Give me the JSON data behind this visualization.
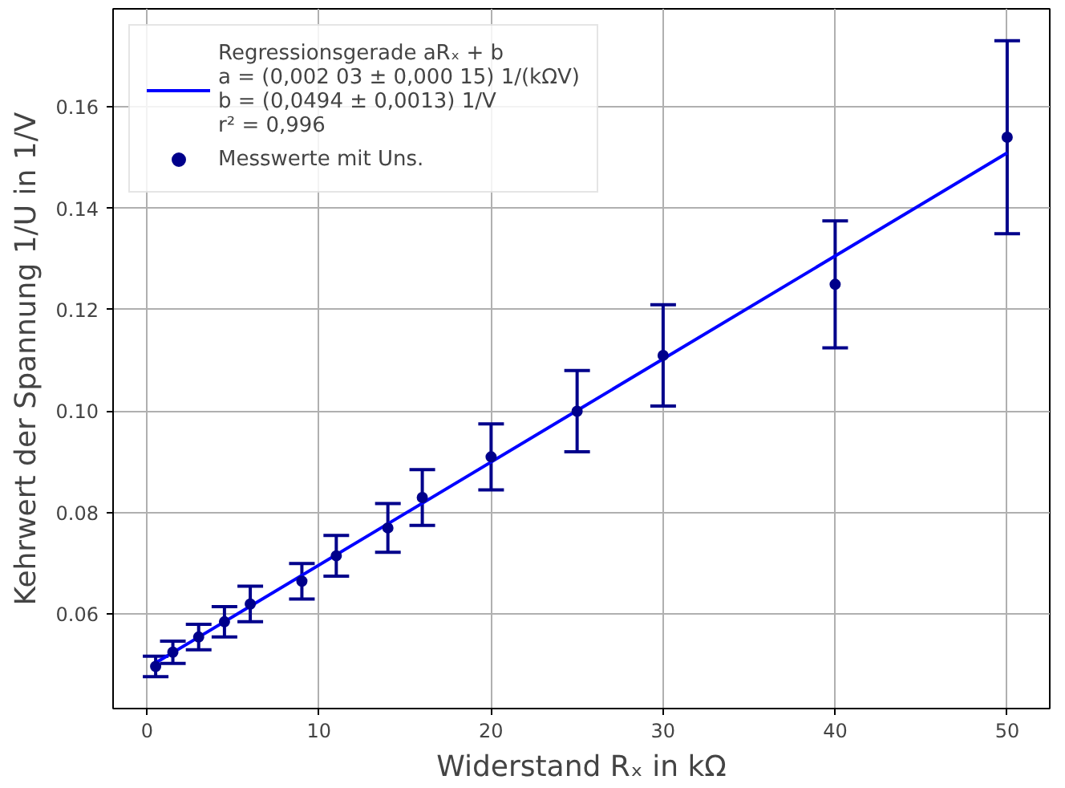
{
  "chart_data": {
    "type": "scatter",
    "xlabel": "Widerstand Rₓ in kΩ",
    "ylabel": "Kehrwert der Spannung 1/U in 1/V",
    "xlim": [
      -1.975,
      52.475
    ],
    "ylim": [
      0.0414,
      0.1793
    ],
    "xticks": [
      0,
      10,
      20,
      30,
      40,
      50
    ],
    "yticks": [
      0.06,
      0.08,
      {
        "value": 0.1,
        "label": "0.10"
      },
      0.12,
      0.14,
      0.16
    ],
    "grid": true,
    "legend": "top left",
    "series": [
      {
        "name": "Regressionsgerade aRₓ + b\na = (0,002 03 ± 0,000 15) 1/(kΩV)\nb = (0,0494 ± 0,0013) 1/V\nr² = 0,996",
        "type": "line",
        "color": "#0000ff",
        "x": [
          0.5,
          50
        ],
        "values": [
          0.0504,
          0.1509
        ]
      },
      {
        "name": "Messwerte mit Uns.",
        "marker": "circle",
        "color": "#00008b",
        "x": [
          0.5,
          1.5,
          3,
          4.5,
          6,
          9,
          11,
          14,
          16,
          20,
          25,
          30,
          40,
          50
        ],
        "values": [
          0.0497,
          0.0525,
          0.0555,
          0.0585,
          0.062,
          0.0665,
          0.0715,
          0.077,
          0.083,
          0.091,
          0.1,
          0.111,
          0.125,
          0.154
        ],
        "errors": [
          0.002,
          0.0022,
          0.0025,
          0.003,
          0.0035,
          0.0035,
          0.004,
          0.0048,
          0.0055,
          0.0065,
          0.008,
          0.01,
          0.0125,
          0.019
        ]
      }
    ]
  }
}
